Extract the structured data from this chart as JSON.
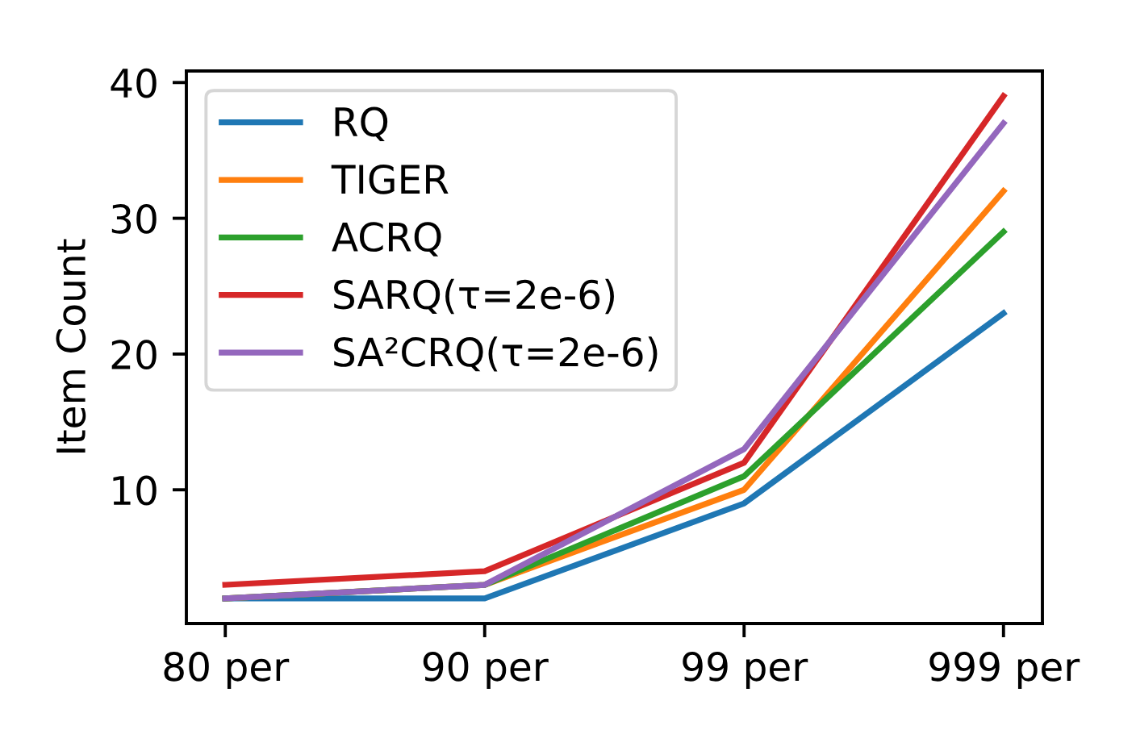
{
  "chart_data": {
    "type": "line",
    "ylabel": "Item Count",
    "categories": [
      "80 per",
      "90 per",
      "99 per",
      "999 per"
    ],
    "series": [
      {
        "name": "RQ",
        "color": "#1f77b4",
        "values": [
          2,
          2,
          9,
          23
        ]
      },
      {
        "name": "TIGER",
        "color": "#ff7f0e",
        "values": [
          2,
          3,
          10,
          32
        ]
      },
      {
        "name": "ACRQ",
        "color": "#2ca02c",
        "values": [
          2,
          3,
          11,
          29
        ]
      },
      {
        "name": "SARQ(τ=2e-6)",
        "color": "#d62728",
        "values": [
          3,
          4,
          12,
          39
        ]
      },
      {
        "name": "SA²CRQ(τ=2e-6)",
        "color": "#9467bd",
        "values": [
          2,
          3,
          13,
          37
        ]
      }
    ],
    "ylim": [
      0.15,
      40.85
    ],
    "yticks": [
      10,
      20,
      30,
      40
    ],
    "legend": "top left",
    "grid": false
  }
}
